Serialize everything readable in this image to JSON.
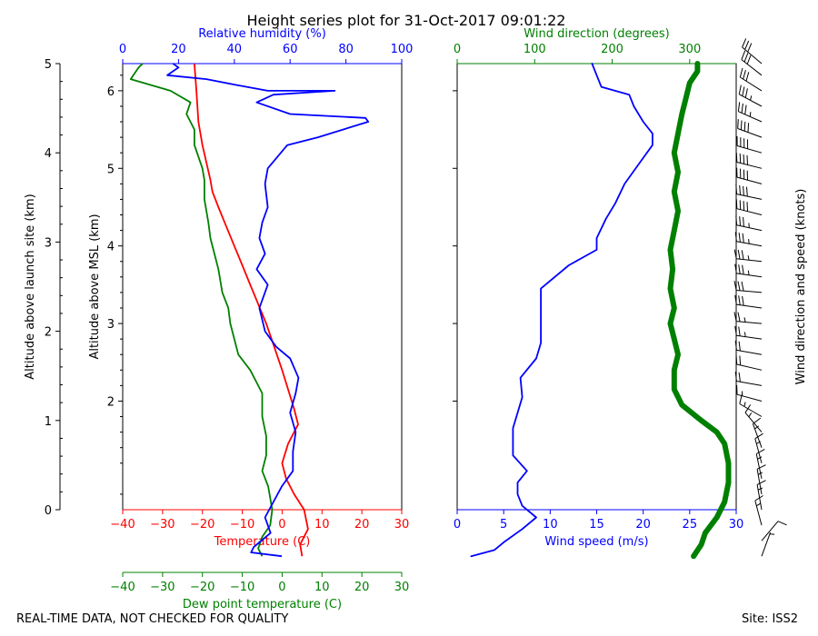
{
  "chart_data": [
    {
      "type": "line",
      "panel": "thermo",
      "title": "Height series plot for 31-Oct-2017 09:01:22",
      "ylabel_left": "Altitude above launch site (km)",
      "ylabel_inner": "Altitude above MSL (km)",
      "agl_ylim": [
        0,
        5
      ],
      "agl_ticks": [
        "0",
        "1",
        "2",
        "3",
        "4",
        "5"
      ],
      "msl_ylim": [
        0.6,
        6.35
      ],
      "msl_ticks": [
        "2",
        "3",
        "4",
        "5",
        "6"
      ],
      "temperature_axis": {
        "label": "Temperature (C)",
        "lim": [
          -40,
          30
        ],
        "ticks": [
          "−40",
          "−30",
          "−20",
          "−10",
          "0",
          "10",
          "20",
          "30"
        ],
        "color": "#ff0000"
      },
      "dewpoint_axis": {
        "label": "Dew point temperature (C)",
        "lim": [
          -40,
          30
        ],
        "ticks": [
          "−40",
          "−30",
          "−20",
          "−10",
          "0",
          "10",
          "20",
          "30"
        ],
        "color": "#008000"
      },
      "humidity_axis": {
        "label": "Relative humidity (%)",
        "lim": [
          0,
          100
        ],
        "ticks": [
          "0",
          "20",
          "40",
          "60",
          "80",
          "100"
        ],
        "color": "#0000ff"
      },
      "series": [
        {
          "name": "Temperature",
          "color": "#ff0000",
          "points": [
            [
              5,
              0
            ],
            [
              4.5,
              0.15
            ],
            [
              6.5,
              0.35
            ],
            [
              5.5,
              0.6
            ],
            [
              3,
              0.8
            ],
            [
              1,
              1.0
            ],
            [
              0,
              1.2
            ],
            [
              1.5,
              1.45
            ],
            [
              4,
              1.7
            ],
            [
              3,
              1.9
            ],
            [
              1.5,
              2.15
            ],
            [
              0,
              2.4
            ],
            [
              -2,
              2.7
            ],
            [
              -4,
              3.0
            ],
            [
              -6,
              3.25
            ],
            [
              -8,
              3.5
            ],
            [
              -10,
              3.75
            ],
            [
              -12,
              4.0
            ],
            [
              -14,
              4.25
            ],
            [
              -16,
              4.5
            ],
            [
              -17.5,
              4.7
            ],
            [
              -18,
              4.85
            ],
            [
              -20,
              5.3
            ],
            [
              -21,
              5.6
            ],
            [
              -21.5,
              6.0
            ],
            [
              -22,
              6.35
            ]
          ]
        },
        {
          "name": "Dew point",
          "color": "#008000",
          "points": [
            [
              -5,
              0
            ],
            [
              -6,
              0.1
            ],
            [
              -5,
              0.25
            ],
            [
              -3,
              0.4
            ],
            [
              -2.5,
              0.6
            ],
            [
              -3.5,
              0.9
            ],
            [
              -5,
              1.1
            ],
            [
              -4,
              1.3
            ],
            [
              -4,
              1.55
            ],
            [
              -5,
              1.8
            ],
            [
              -5,
              2.1
            ],
            [
              -8,
              2.4
            ],
            [
              -11,
              2.6
            ],
            [
              -12,
              2.8
            ],
            [
              -13,
              3.0
            ],
            [
              -13.5,
              3.2
            ],
            [
              -15,
              3.4
            ],
            [
              -16,
              3.7
            ],
            [
              -18,
              4.1
            ],
            [
              -18.5,
              4.3
            ],
            [
              -19.5,
              4.6
            ],
            [
              -19.5,
              4.85
            ],
            [
              -20,
              5.0
            ],
            [
              -22,
              5.3
            ],
            [
              -22,
              5.5
            ],
            [
              -24,
              5.7
            ],
            [
              -23,
              5.85
            ],
            [
              -28,
              6.0
            ],
            [
              -38,
              6.15
            ],
            [
              -36,
              6.3
            ],
            [
              -35,
              6.35
            ]
          ]
        },
        {
          "name": "Relative humidity",
          "color": "#0000ff",
          "x_units": "percent",
          "points": [
            [
              57,
              0
            ],
            [
              46,
              0.05
            ],
            [
              47,
              0.12
            ],
            [
              53,
              0.3
            ],
            [
              51,
              0.5
            ],
            [
              54,
              0.7
            ],
            [
              57,
              0.9
            ],
            [
              61,
              1.1
            ],
            [
              61,
              1.35
            ],
            [
              62,
              1.6
            ],
            [
              60,
              1.85
            ],
            [
              62,
              2.1
            ],
            [
              63,
              2.3
            ],
            [
              60,
              2.55
            ],
            [
              55,
              2.7
            ],
            [
              51,
              2.9
            ],
            [
              49,
              3.2
            ],
            [
              52,
              3.5
            ],
            [
              48,
              3.7
            ],
            [
              51,
              3.9
            ],
            [
              49,
              4.1
            ],
            [
              50,
              4.3
            ],
            [
              52,
              4.5
            ],
            [
              51,
              4.8
            ],
            [
              52,
              5.0
            ],
            [
              59,
              5.3
            ],
            [
              70,
              5.4
            ],
            [
              88,
              5.6
            ],
            [
              87,
              5.65
            ],
            [
              60,
              5.7
            ],
            [
              48,
              5.85
            ],
            [
              54,
              5.95
            ],
            [
              76,
              6.0
            ],
            [
              52,
              6.0
            ],
            [
              40,
              6.08
            ],
            [
              30,
              6.15
            ],
            [
              16,
              6.2
            ],
            [
              20,
              6.3
            ],
            [
              18,
              6.35
            ]
          ]
        }
      ]
    },
    {
      "type": "line",
      "panel": "wind",
      "wind_speed_axis": {
        "label": "Wind speed (m/s)",
        "lim": [
          0,
          30
        ],
        "ticks": [
          "0",
          "5",
          "10",
          "15",
          "20",
          "25",
          "30"
        ],
        "color": "#0000ff"
      },
      "wind_direction_axis": {
        "label": "Wind direction (degrees)",
        "lim": [
          0,
          360
        ],
        "ticks": [
          "0",
          "100",
          "200",
          "300"
        ],
        "color": "#008000"
      },
      "barbs_label": "Wind direction and speed (knots)",
      "series": [
        {
          "name": "Wind speed",
          "color": "#0000ff",
          "points": [
            [
              1.5,
              0
            ],
            [
              4,
              0.08
            ],
            [
              5,
              0.18
            ],
            [
              7,
              0.35
            ],
            [
              8.5,
              0.5
            ],
            [
              7,
              0.65
            ],
            [
              6.5,
              0.8
            ],
            [
              6.5,
              0.95
            ],
            [
              7.5,
              1.1
            ],
            [
              6,
              1.3
            ],
            [
              6,
              1.45
            ],
            [
              6,
              1.65
            ],
            [
              6.5,
              1.85
            ],
            [
              7,
              2.05
            ],
            [
              6.8,
              2.3
            ],
            [
              8.5,
              2.55
            ],
            [
              9,
              2.75
            ],
            [
              9,
              2.95
            ],
            [
              9,
              3.2
            ],
            [
              9,
              3.45
            ],
            [
              12,
              3.75
            ],
            [
              15,
              3.95
            ],
            [
              15,
              4.1
            ],
            [
              16,
              4.35
            ],
            [
              17,
              4.55
            ],
            [
              18,
              4.8
            ],
            [
              19.5,
              5.05
            ],
            [
              21,
              5.3
            ],
            [
              21,
              5.45
            ],
            [
              20,
              5.6
            ],
            [
              19,
              5.8
            ],
            [
              18.5,
              5.95
            ],
            [
              15.5,
              6.05
            ],
            [
              15,
              6.2
            ],
            [
              14.5,
              6.35
            ]
          ]
        },
        {
          "name": "Wind direction",
          "color": "#008000",
          "x_units": "degrees",
          "points": [
            [
              305,
              0
            ],
            [
              315,
              0.15
            ],
            [
              320,
              0.3
            ],
            [
              335,
              0.5
            ],
            [
              345,
              0.7
            ],
            [
              350,
              0.95
            ],
            [
              350,
              1.2
            ],
            [
              345,
              1.45
            ],
            [
              335,
              1.6
            ],
            [
              315,
              1.75
            ],
            [
              290,
              1.95
            ],
            [
              280,
              2.15
            ],
            [
              280,
              2.4
            ],
            [
              285,
              2.6
            ],
            [
              280,
              2.8
            ],
            [
              275,
              3.0
            ],
            [
              280,
              3.2
            ],
            [
              275,
              3.45
            ],
            [
              278,
              3.7
            ],
            [
              275,
              3.95
            ],
            [
              280,
              4.2
            ],
            [
              285,
              4.45
            ],
            [
              280,
              4.7
            ],
            [
              285,
              4.95
            ],
            [
              280,
              5.2
            ],
            [
              285,
              5.45
            ],
            [
              290,
              5.7
            ],
            [
              295,
              5.9
            ],
            [
              300,
              6.1
            ],
            [
              310,
              6.25
            ],
            [
              310,
              6.35
            ]
          ]
        }
      ],
      "barbs": [
        {
          "alt": 0.0,
          "dir": 20,
          "kt": 5
        },
        {
          "alt": 0.2,
          "dir": 40,
          "kt": 10
        },
        {
          "alt": 0.4,
          "dir": 345,
          "kt": 15
        },
        {
          "alt": 0.6,
          "dir": 350,
          "kt": 15
        },
        {
          "alt": 0.8,
          "dir": 350,
          "kt": 15
        },
        {
          "alt": 1.0,
          "dir": 348,
          "kt": 15
        },
        {
          "alt": 1.2,
          "dir": 345,
          "kt": 15
        },
        {
          "alt": 1.4,
          "dir": 340,
          "kt": 15
        },
        {
          "alt": 1.6,
          "dir": 320,
          "kt": 15
        },
        {
          "alt": 1.8,
          "dir": 300,
          "kt": 15
        },
        {
          "alt": 2.0,
          "dir": 285,
          "kt": 15
        },
        {
          "alt": 2.2,
          "dir": 280,
          "kt": 20
        },
        {
          "alt": 2.4,
          "dir": 283,
          "kt": 20
        },
        {
          "alt": 2.6,
          "dir": 280,
          "kt": 20
        },
        {
          "alt": 2.8,
          "dir": 278,
          "kt": 25
        },
        {
          "alt": 3.0,
          "dir": 275,
          "kt": 25
        },
        {
          "alt": 3.2,
          "dir": 278,
          "kt": 30
        },
        {
          "alt": 3.4,
          "dir": 275,
          "kt": 30
        },
        {
          "alt": 3.6,
          "dir": 278,
          "kt": 35
        },
        {
          "alt": 3.8,
          "dir": 276,
          "kt": 35
        },
        {
          "alt": 4.0,
          "dir": 280,
          "kt": 35
        },
        {
          "alt": 4.2,
          "dir": 282,
          "kt": 35
        },
        {
          "alt": 4.4,
          "dir": 284,
          "kt": 40
        },
        {
          "alt": 4.6,
          "dir": 282,
          "kt": 40
        },
        {
          "alt": 4.8,
          "dir": 285,
          "kt": 40
        },
        {
          "alt": 5.0,
          "dir": 284,
          "kt": 40
        },
        {
          "alt": 5.2,
          "dir": 286,
          "kt": 40
        },
        {
          "alt": 5.4,
          "dir": 290,
          "kt": 40
        },
        {
          "alt": 5.6,
          "dir": 294,
          "kt": 35
        },
        {
          "alt": 5.8,
          "dir": 298,
          "kt": 35
        },
        {
          "alt": 6.0,
          "dir": 302,
          "kt": 30
        },
        {
          "alt": 6.2,
          "dir": 308,
          "kt": 30
        },
        {
          "alt": 6.35,
          "dir": 310,
          "kt": 30
        }
      ]
    }
  ],
  "footer": {
    "quality_note": "REAL-TIME DATA, NOT CHECKED FOR QUALITY",
    "site": "Site: ISS2"
  }
}
